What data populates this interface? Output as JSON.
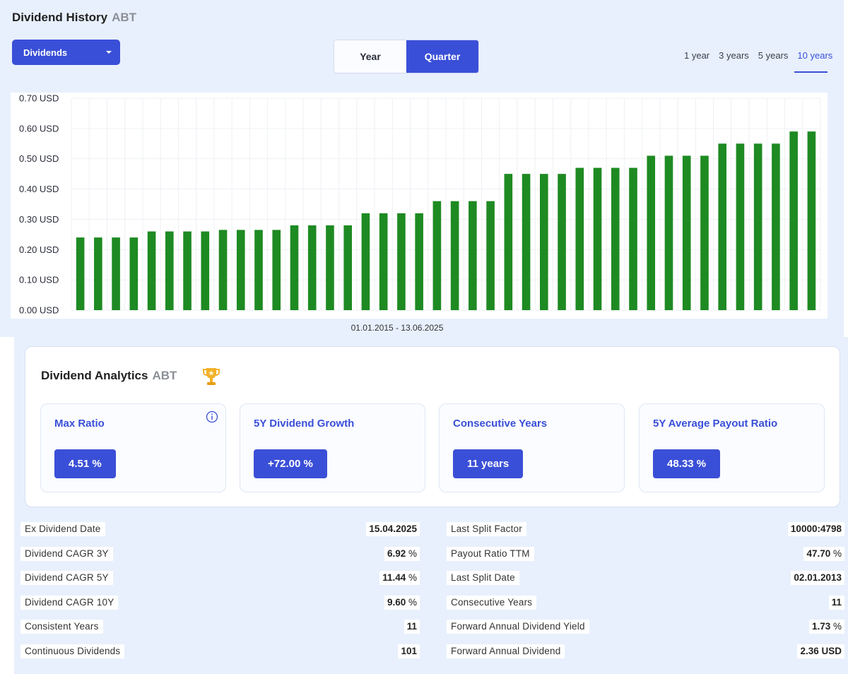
{
  "header": {
    "title": "Dividend History",
    "ticker": "ABT"
  },
  "dropdown": {
    "selected": "Dividends"
  },
  "period_toggle": {
    "options": [
      "Year",
      "Quarter"
    ],
    "active": "Quarter"
  },
  "ranges": {
    "options": [
      "1 year",
      "3 years",
      "5 years",
      "10 years"
    ],
    "active": "10 years"
  },
  "colors": {
    "accent": "#3a4fd7",
    "bar": "#1e8a22",
    "panel_bg": "#e8f0fd"
  },
  "chart_data": {
    "type": "bar",
    "title": "",
    "xlabel": "01.01.2015 - 13.06.2025",
    "ylabel": "",
    "ylim": [
      0,
      0.7
    ],
    "y_ticks": [
      "0.70 USD",
      "0.60 USD",
      "0.50 USD",
      "0.40 USD",
      "0.30 USD",
      "0.20 USD",
      "0.10 USD",
      "0.00 USD"
    ],
    "y_tick_values": [
      0.7,
      0.6,
      0.5,
      0.4,
      0.3,
      0.2,
      0.1,
      0.0
    ],
    "values": [
      0.24,
      0.24,
      0.24,
      0.24,
      0.26,
      0.26,
      0.26,
      0.26,
      0.265,
      0.265,
      0.265,
      0.265,
      0.28,
      0.28,
      0.28,
      0.28,
      0.32,
      0.32,
      0.32,
      0.32,
      0.36,
      0.36,
      0.36,
      0.36,
      0.45,
      0.45,
      0.45,
      0.45,
      0.47,
      0.47,
      0.47,
      0.47,
      0.51,
      0.51,
      0.51,
      0.51,
      0.55,
      0.55,
      0.55,
      0.55,
      0.59,
      0.59
    ],
    "grid": true
  },
  "analytics": {
    "title": "Dividend Analytics",
    "ticker": "ABT",
    "cards": [
      {
        "label": "Max Ratio",
        "value": "4.51 %"
      },
      {
        "label": "5Y Dividend Growth",
        "value": "+72.00 %"
      },
      {
        "label": "Consecutive Years",
        "value": "11 years"
      },
      {
        "label": "5Y Average Payout Ratio",
        "value": "48.33 %"
      }
    ]
  },
  "stats_left": [
    {
      "key": "Ex Dividend Date",
      "value": "15.04.2025",
      "unit": ""
    },
    {
      "key": "Dividend CAGR 3Y",
      "value": "6.92",
      "unit": " %"
    },
    {
      "key": "Dividend CAGR 5Y",
      "value": "11.44",
      "unit": " %"
    },
    {
      "key": "Dividend CAGR 10Y",
      "value": "9.60",
      "unit": " %"
    },
    {
      "key": "Consistent Years",
      "value": "11",
      "unit": ""
    },
    {
      "key": "Continuous Dividends",
      "value": "101",
      "unit": ""
    }
  ],
  "stats_right": [
    {
      "key": "Last Split Factor",
      "value": "10000:4798",
      "unit": ""
    },
    {
      "key": "Payout Ratio TTM",
      "value": "47.70",
      "unit": " %"
    },
    {
      "key": "Last Split Date",
      "value": "02.01.2013",
      "unit": ""
    },
    {
      "key": "Consecutive Years",
      "value": "11",
      "unit": ""
    },
    {
      "key": "Forward Annual Dividend Yield",
      "value": "1.73",
      "unit": " %"
    },
    {
      "key": "Forward Annual Dividend",
      "value": "2.36 USD",
      "unit": ""
    }
  ]
}
